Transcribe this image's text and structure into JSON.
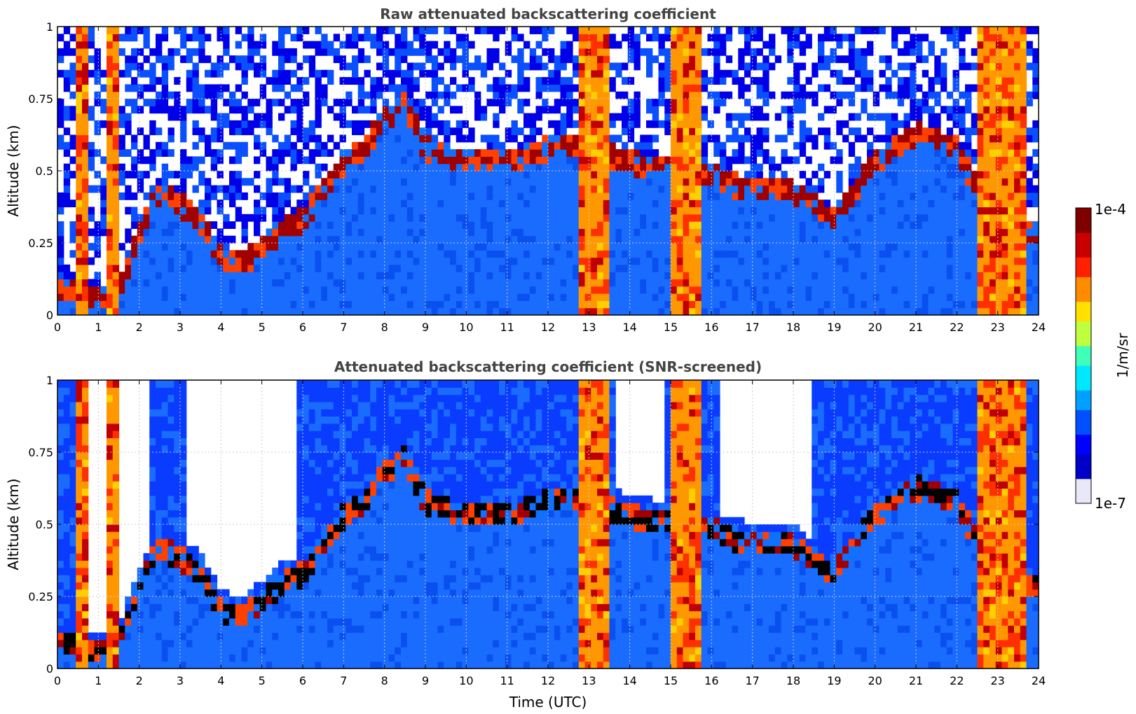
{
  "chart_data": [
    {
      "type": "heatmap",
      "title": "Raw attenuated backscattering coefficient",
      "xlabel": "",
      "ylabel": "Altitude (km)",
      "xlim": [
        0,
        24
      ],
      "ylim": [
        0,
        1
      ],
      "x_ticks": [
        "0",
        "1",
        "2",
        "3",
        "4",
        "5",
        "6",
        "7",
        "8",
        "9",
        "10",
        "11",
        "12",
        "13",
        "14",
        "15",
        "16",
        "17",
        "18",
        "19",
        "20",
        "21",
        "22",
        "23",
        "24"
      ],
      "y_ticks": [
        "0",
        "0.25",
        "0.5",
        "0.75",
        "1"
      ],
      "grid": true,
      "screened": false
    },
    {
      "type": "heatmap",
      "title": "Attenuated backscattering coefficient (SNR-screened)",
      "xlabel": "Time (UTC)",
      "ylabel": "Altitude (km)",
      "xlim": [
        0,
        24
      ],
      "ylim": [
        0,
        1
      ],
      "x_ticks": [
        "0",
        "1",
        "2",
        "3",
        "4",
        "5",
        "6",
        "7",
        "8",
        "9",
        "10",
        "11",
        "12",
        "13",
        "14",
        "15",
        "16",
        "17",
        "18",
        "19",
        "20",
        "21",
        "22",
        "23",
        "24"
      ],
      "y_ticks": [
        "0",
        "0.25",
        "0.5",
        "0.75",
        "1"
      ],
      "grid": true,
      "screened": true
    }
  ],
  "colorbar": {
    "label": "1/m/sr",
    "max_label": "1e-4",
    "min_label": "1e-7",
    "scale": "log",
    "range": [
      1e-07,
      0.0001
    ],
    "colormap": [
      "#e8e8f8",
      "#0000c8",
      "#0000ff",
      "#0050ff",
      "#00a0ff",
      "#00e8ff",
      "#40ffb8",
      "#c0ff40",
      "#ffe000",
      "#ff8c00",
      "#ff2000",
      "#c80000",
      "#800000"
    ]
  },
  "features": {
    "opaque_columns_utc": [
      [
        0.45,
        0.75
      ],
      [
        1.15,
        1.45
      ],
      [
        12.75,
        13.55
      ],
      [
        14.95,
        15.7
      ],
      [
        22.5,
        23.75
      ]
    ],
    "boundary_layer_top_km": [
      [
        0,
        0.12
      ],
      [
        0.5,
        0.1
      ],
      [
        1,
        0.08
      ],
      [
        1.5,
        0.1
      ],
      [
        2,
        0.3
      ],
      [
        2.5,
        0.45
      ],
      [
        3.5,
        0.35
      ],
      [
        4,
        0.22
      ],
      [
        4.5,
        0.2
      ],
      [
        5,
        0.25
      ],
      [
        5.5,
        0.32
      ],
      [
        6,
        0.35
      ],
      [
        6.5,
        0.45
      ],
      [
        7,
        0.55
      ],
      [
        7.5,
        0.6
      ],
      [
        8,
        0.7
      ],
      [
        8.5,
        0.75
      ],
      [
        9,
        0.6
      ],
      [
        10,
        0.55
      ],
      [
        11,
        0.55
      ],
      [
        12,
        0.6
      ],
      [
        13,
        0.6
      ],
      [
        14,
        0.55
      ],
      [
        16,
        0.5
      ],
      [
        17,
        0.45
      ],
      [
        18,
        0.45
      ],
      [
        19,
        0.35
      ],
      [
        20,
        0.55
      ],
      [
        21,
        0.65
      ],
      [
        22,
        0.6
      ],
      [
        23,
        0.3
      ],
      [
        24,
        0.3
      ]
    ]
  }
}
